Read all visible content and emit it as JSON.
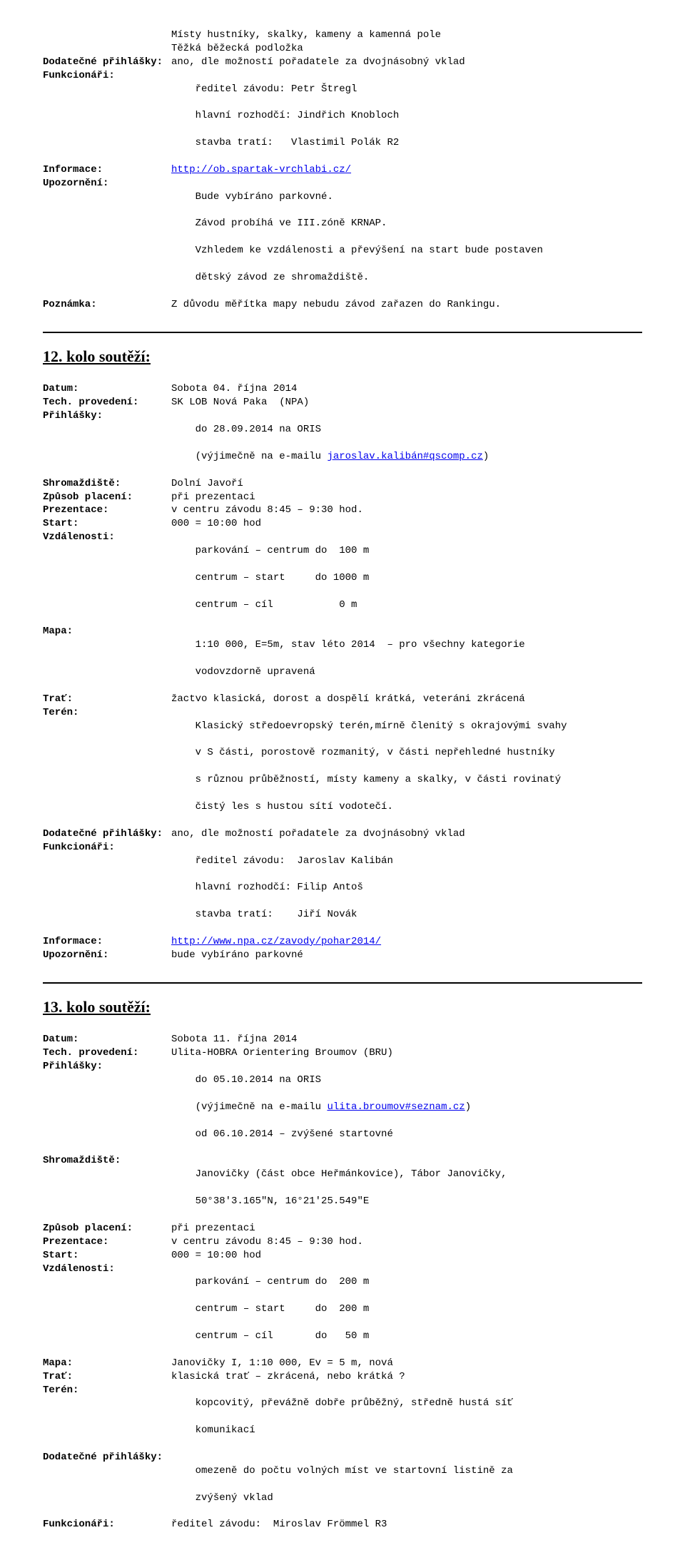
{
  "top": {
    "indent1": "Místy hustníky, skalky, kameny a kamenná pole",
    "indent2": "Těžká běžecká podložka",
    "dodat_label": "Dodatečné přihlášky:",
    "dodat_val": "ano, dle možností pořadatele za dvojnásobný vklad",
    "funk_label": "Funkcionáři:",
    "funk_l1": "ředitel závodu: Petr Štregl",
    "funk_l2": "hlavní rozhodčí: Jindřich Knobloch",
    "funk_l3": "stavba tratí:   Vlastimil Polák R2",
    "info_label": "Informace:",
    "info_link": "http://ob.spartak-vrchlabi.cz/",
    "upoz_label": "Upozornění:",
    "upoz_l1": "Bude vybíráno parkovné.",
    "upoz_l2": "Závod probíhá ve III.zóně KRNAP.",
    "upoz_l3": "Vzhledem ke vzdálenosti a převýšení na start bude postaven",
    "upoz_l4": "dětský závod ze shromaždiště.",
    "pozn_label": "Poznámka:",
    "pozn_val": "Z důvodu měřítka mapy nebudu závod zařazen do Rankingu."
  },
  "s12": {
    "heading": "12. kolo soutěží:",
    "datum_label": "Datum:",
    "datum_val": "Sobota 04. října 2014",
    "tech_label": "Tech. provedení:",
    "tech_val": "SK LOB Nová Paka  (NPA)",
    "prih_label": "Přihlášky:",
    "prih_val": "do 28.09.2014 na ORIS",
    "prih_l2a": "(výjimečně na e-mailu ",
    "prih_link": "jaroslav.kalibán#qscomp.cz",
    "prih_l2b": ")",
    "shrom_label": "Shromaždiště:",
    "shrom_val": "Dolní Javoří",
    "plat_label": "Způsob placení:",
    "plat_val": "při prezentaci",
    "prez_label": "Prezentace:",
    "prez_val": "v centru závodu 8:45 – 9:30 hod.",
    "start_label": "Start:",
    "start_val": "000 = 10:00 hod",
    "vzd_label": "Vzdálenosti:",
    "vzd_l1": "parkování – centrum do  100 m",
    "vzd_l2": "centrum – start     do 1000 m",
    "vzd_l3": "centrum – cíl           0 m",
    "mapa_label": "Mapa:",
    "mapa_l1": "1:10 000, E=5m, stav léto 2014  – pro všechny kategorie",
    "mapa_l2": "vodovzdorně upravená",
    "trat_label": "Trať:",
    "trat_val": "žactvo klasická, dorost a dospělí krátká, veteráni zkrácená",
    "teren_label": "Terén:",
    "teren_l1": "Klasický středoevropský terén,mírně členitý s okrajovými svahy",
    "teren_l2": "v S části, porostově rozmanitý, v části nepřehledné hustníky",
    "teren_l3": "s různou průběžností, místy kameny a skalky, v části rovinatý",
    "teren_l4": "čistý les s hustou sítí vodotečí.",
    "dodat_label": "Dodatečné přihlášky:",
    "dodat_val": "ano, dle možností pořadatele za dvojnásobný vklad",
    "funk_label": "Funkcionáři:",
    "funk_l1": "ředitel závodu:  Jaroslav Kalibán",
    "funk_l2": "hlavní rozhodčí: Filip Antoš",
    "funk_l3": "stavba tratí:    Jiří Novák",
    "info_label": "Informace:",
    "info_link": "http://www.npa.cz/zavody/pohar2014/",
    "upoz_label": "Upozornění:",
    "upoz_val": "bude vybíráno parkovné"
  },
  "s13": {
    "heading": "13. kolo soutěží:",
    "datum_label": "Datum:",
    "datum_val": "Sobota 11. října 2014",
    "tech_label": "Tech. provedení:",
    "tech_val": "Ulita-HOBRA Orientering Broumov (BRU)",
    "prih_label": "Přihlášky:",
    "prih_val": "do 05.10.2014 na ORIS",
    "prih_l2a": "(výjimečně na e-mailu ",
    "prih_link": "ulita.broumov#seznam.cz",
    "prih_l2b": ")",
    "prih_l3": "od 06.10.2014 – zvýšené startovné",
    "shrom_label": "Shromaždiště:",
    "shrom_l1": "Janovičky (část obce Heřmánkovice), Tábor Janovičky,",
    "shrom_l2": "50°38'3.165\"N, 16°21'25.549\"E",
    "plat_label": "Způsob placení:",
    "plat_val": "při prezentaci",
    "prez_label": "Prezentace:",
    "prez_val": "v centru závodu 8:45 – 9:30 hod.",
    "start_label": "Start:",
    "start_val": "000 = 10:00 hod",
    "vzd_label": "Vzdálenosti:",
    "vzd_l1": "parkování – centrum do  200 m",
    "vzd_l2": "centrum – start     do  200 m",
    "vzd_l3": "centrum – cíl       do   50 m",
    "mapa_label": "Mapa:",
    "mapa_val": "Janovičky I, 1:10 000, Ev = 5 m, nová",
    "trat_label": "Trať:",
    "trat_val": "klasická trať – zkrácená, nebo krátká ?",
    "teren_label": "Terén:",
    "teren_l1": "kopcovitý, převážně dobře průběžný, středně hustá síť",
    "teren_l2": "komunikací",
    "dodat_label": "Dodatečné přihlášky:",
    "dodat_l1": "omezeně do počtu volných míst ve startovní listině za",
    "dodat_l2": "zvýšený vklad",
    "funk_label": "Funkcionáři:",
    "funk_val": "ředitel závodu:  Miroslav Frömmel R3"
  }
}
